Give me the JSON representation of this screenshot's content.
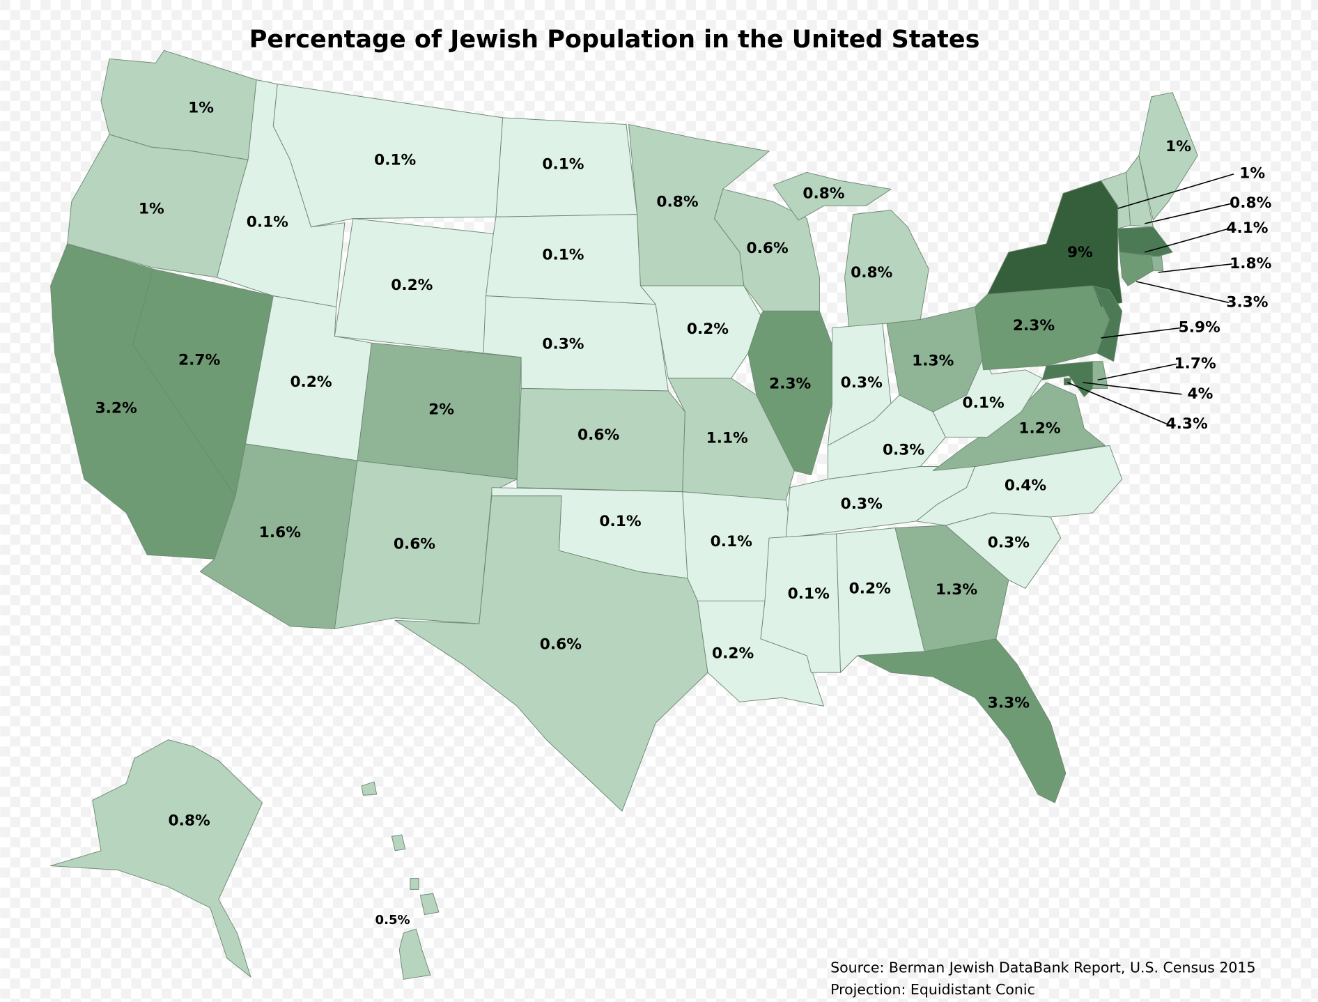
{
  "title": "Percentage of Jewish Population in the United States",
  "notes": [
    "Source: Berman Jewish DataBank Report, U.S. Census 2015",
    "Projection: Equidistant Conic"
  ],
  "regions": [
    {
      "value": 1,
      "label": "1%",
      "color": "#b7d4bf"
    },
    {
      "value": 1,
      "label": "1%",
      "color": "#b7d4bf"
    },
    {
      "value": 3.2,
      "label": "3.2%",
      "color": "#6e9a74"
    },
    {
      "value": 2.7,
      "label": "2.7%",
      "color": "#6e9a74"
    },
    {
      "value": 0.1,
      "label": "0.1%",
      "color": "#dff2e8"
    },
    {
      "value": 0.1,
      "label": "0.1%",
      "color": "#dff2e8"
    },
    {
      "value": 0.2,
      "label": "0.2%",
      "color": "#dff2e8"
    },
    {
      "value": 0.2,
      "label": "0.2%",
      "color": "#dff2e8"
    },
    {
      "value": 2,
      "label": "2%",
      "color": "#8fb596"
    },
    {
      "value": 1.6,
      "label": "1.6%",
      "color": "#8fb596"
    },
    {
      "value": 0.6,
      "label": "0.6%",
      "color": "#b7d4bf"
    },
    {
      "value": 0.1,
      "label": "0.1%",
      "color": "#dff2e8"
    },
    {
      "value": 0.1,
      "label": "0.1%",
      "color": "#dff2e8"
    },
    {
      "value": 0.3,
      "label": "0.3%",
      "color": "#dff2e8"
    },
    {
      "value": 0.6,
      "label": "0.6%",
      "color": "#b7d4bf"
    },
    {
      "value": 0.1,
      "label": "0.1%",
      "color": "#dff2e8"
    },
    {
      "value": 0.6,
      "label": "0.6%",
      "color": "#b7d4bf"
    },
    {
      "value": 0.8,
      "label": "0.8%",
      "color": "#b7d4bf"
    },
    {
      "value": 0.2,
      "label": "0.2%",
      "color": "#dff2e8"
    },
    {
      "value": 1.1,
      "label": "1.1%",
      "color": "#b7d4bf"
    },
    {
      "value": 0.1,
      "label": "0.1%",
      "color": "#dff2e8"
    },
    {
      "value": 0.2,
      "label": "0.2%",
      "color": "#dff2e8"
    },
    {
      "value": 0.6,
      "label": "0.6%",
      "color": "#b7d4bf"
    },
    {
      "value": 2.3,
      "label": "2.3%",
      "color": "#6e9a74"
    },
    {
      "value": 0.8,
      "label": "0.8%",
      "color": "#b7d4bf"
    },
    {
      "value": 0.8,
      "label": "0.8%",
      "color": "#b7d4bf"
    },
    {
      "value": 0.3,
      "label": "0.3%",
      "color": "#dff2e8"
    },
    {
      "value": 1.3,
      "label": "1.3%",
      "color": "#8fb596"
    },
    {
      "value": 0.3,
      "label": "0.3%",
      "color": "#dff2e8"
    },
    {
      "value": 0.3,
      "label": "0.3%",
      "color": "#dff2e8"
    },
    {
      "value": 0.1,
      "label": "0.1%",
      "color": "#dff2e8"
    },
    {
      "value": 0.2,
      "label": "0.2%",
      "color": "#dff2e8"
    },
    {
      "value": 1.3,
      "label": "1.3%",
      "color": "#8fb596"
    },
    {
      "value": 3.3,
      "label": "3.3%",
      "color": "#6e9a74"
    },
    {
      "value": 0.3,
      "label": "0.3%",
      "color": "#dff2e8"
    },
    {
      "value": 0.4,
      "label": "0.4%",
      "color": "#dff2e8"
    },
    {
      "value": 1.2,
      "label": "1.2%",
      "color": "#8fb596"
    },
    {
      "value": 0.1,
      "label": "0.1%",
      "color": "#dff2e8"
    },
    {
      "value": 2.3,
      "label": "2.3%",
      "color": "#6e9a74"
    },
    {
      "value": 9,
      "label": "9%",
      "color": "#345f3a"
    },
    {
      "value": 5.9,
      "label": "5.9%",
      "color": "#4b7a54"
    },
    {
      "value": 1.7,
      "label": "1.7%",
      "color": "#8fb596"
    },
    {
      "value": 4,
      "label": "4%",
      "color": "#4b7a54"
    },
    {
      "value": 4.3,
      "label": "4.3%",
      "color": "#4b7a54"
    },
    {
      "value": 1,
      "label": "1%",
      "color": "#b7d4bf"
    },
    {
      "value": 0.8,
      "label": "0.8%",
      "color": "#b7d4bf"
    },
    {
      "value": 1,
      "label": "1%",
      "color": "#b7d4bf"
    },
    {
      "value": 4.1,
      "label": "4.1%",
      "color": "#4b7a54"
    },
    {
      "value": 1.8,
      "label": "1.8%",
      "color": "#8fb596"
    },
    {
      "value": 3.3,
      "label": "3.3%",
      "color": "#6e9a74"
    },
    {
      "value": 0.8,
      "label": "0.8%",
      "color": "#b7d4bf"
    },
    {
      "value": 0.5,
      "label": "0.5%",
      "color": "#b7d4bf"
    }
  ]
}
